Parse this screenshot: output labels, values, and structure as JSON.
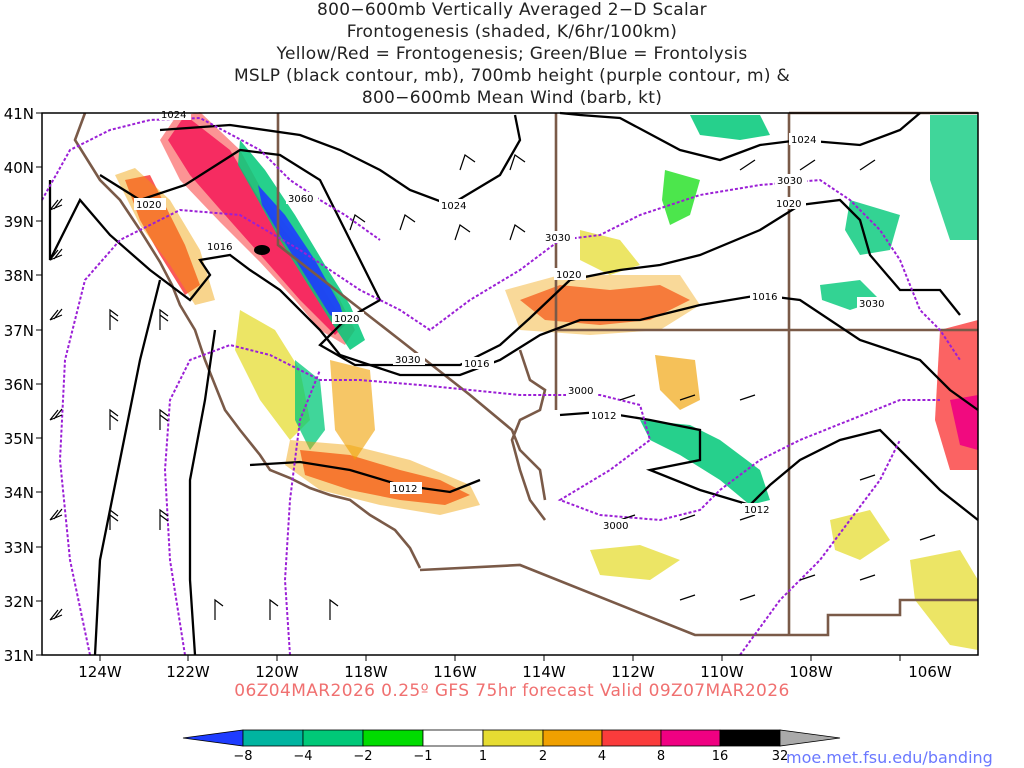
{
  "title_lines": [
    "800−600mb Vertically Averaged 2−D Scalar",
    "Frontogenesis (shaded, K/6hr/100km)",
    "Yellow/Red = Frontogenesis;  Green/Blue = Frontolysis",
    "MSLP (black contour, mb), 700mb height (purple contour, m) &",
    "800−600mb Mean Wind (barb, kt)"
  ],
  "lat_labels": [
    "41N",
    "40N",
    "39N",
    "38N",
    "37N",
    "36N",
    "35N",
    "34N",
    "33N",
    "32N",
    "31N"
  ],
  "lon_labels": [
    "124W",
    "122W",
    "120W",
    "118W",
    "116W",
    "114W",
    "112W",
    "110W",
    "108W",
    "106W"
  ],
  "mslp_labels": [
    "1024",
    "1024",
    "1024",
    "1020",
    "1020",
    "1020",
    "1016",
    "1016",
    "1016",
    "1012",
    "1012"
  ],
  "height_labels": [
    "3060",
    "3030",
    "3030",
    "3030",
    "3030",
    "3000",
    "3000"
  ],
  "footer": "06Z04MAR2026 0.25º GFS 75hr forecast Valid 09Z07MAR2026",
  "colorbar_labels": [
    "−8",
    "−4",
    "−2",
    "−1",
    "1",
    "2",
    "4",
    "8",
    "16",
    "32"
  ],
  "colorbar_colors": [
    "#1e3cff",
    "#00b4a0",
    "#00c878",
    "#00dc00",
    "#ffffff",
    "#e6dc32",
    "#f0a000",
    "#fa3c3c",
    "#f00082",
    "#000000",
    "#aaaaaa"
  ],
  "credit": "moe.met.fsu.edu/banding",
  "colors": {
    "mslp": "#000000",
    "height": "#9b1fd6",
    "border": "#7a5a48",
    "footer": "#f07070",
    "credit": "#6a78ff"
  }
}
